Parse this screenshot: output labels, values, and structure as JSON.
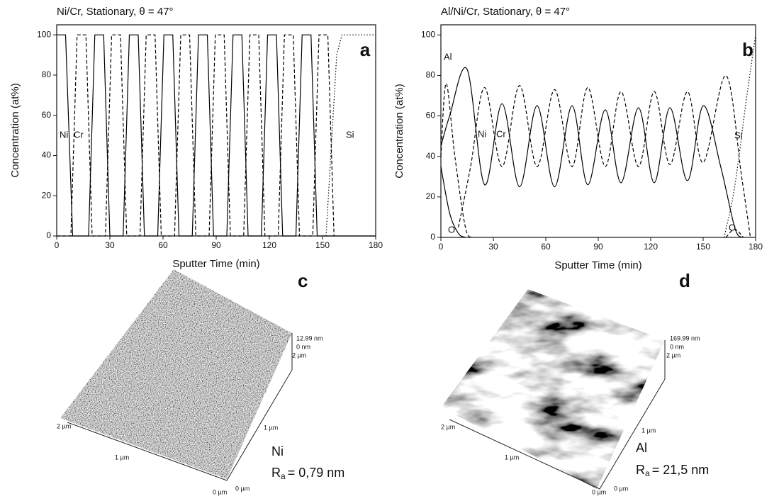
{
  "chart_data": [
    {
      "type": "line",
      "title": "Ni/Cr, Stationary, θ = 47°",
      "label": "a",
      "x_label": "Sputter Time (min)",
      "y_label": "Concentration (at%)",
      "xlim": [
        0,
        180
      ],
      "ylim": [
        0,
        105
      ],
      "xticks": [
        0,
        30,
        60,
        90,
        120,
        150,
        180
      ],
      "yticks": [
        0,
        20,
        40,
        60,
        80,
        100
      ],
      "smooth": false,
      "series": [
        {
          "name": "Ni",
          "color": "#000000",
          "dash": "solid",
          "x": [
            0,
            5,
            9,
            18,
            21.5,
            26.5,
            30,
            37.5,
            41,
            46,
            49.5,
            57,
            60.5,
            65.5,
            69,
            76.5,
            80,
            85,
            88.5,
            96,
            99.5,
            104.5,
            108,
            115.5,
            119,
            124,
            127.5,
            135,
            138.5,
            143.5,
            147,
            180
          ],
          "values": [
            100,
            100,
            0,
            0,
            100,
            100,
            0,
            0,
            100,
            100,
            0,
            0,
            100,
            100,
            0,
            0,
            100,
            100,
            0,
            0,
            100,
            100,
            0,
            0,
            100,
            100,
            0,
            0,
            100,
            100,
            0,
            0
          ]
        },
        {
          "name": "Cr",
          "color": "#000000",
          "dash": "dashed",
          "x": [
            0,
            8,
            11.5,
            16.5,
            20,
            27.5,
            31,
            36,
            39.5,
            47,
            50.5,
            55.5,
            59,
            66.5,
            70,
            75,
            78.5,
            86,
            89.5,
            94.5,
            98,
            105.5,
            109,
            114,
            117.5,
            125,
            128.5,
            133.5,
            137,
            144.5,
            148,
            153,
            156.5
          ],
          "values": [
            0,
            0,
            100,
            100,
            0,
            0,
            100,
            100,
            0,
            0,
            100,
            100,
            0,
            0,
            100,
            100,
            0,
            0,
            100,
            100,
            0,
            0,
            100,
            100,
            0,
            0,
            100,
            100,
            0,
            0,
            100,
            100,
            0
          ]
        },
        {
          "name": "Si",
          "color": "#000000",
          "dash": "dotted",
          "x": [
            152,
            158,
            161,
            180
          ],
          "values": [
            0,
            90,
            100,
            100
          ]
        }
      ]
    },
    {
      "type": "line",
      "title": "Al/Ni/Cr, Stationary, θ = 47°",
      "label": "b",
      "x_label": "Sputter Time (min)",
      "y_label": "Concentration (at%)",
      "xlim": [
        0,
        180
      ],
      "ylim": [
        0,
        105
      ],
      "xticks": [
        0,
        30,
        60,
        90,
        120,
        150,
        180
      ],
      "yticks": [
        0,
        20,
        40,
        60,
        80,
        100
      ],
      "smooth": true,
      "series": [
        {
          "name": "Al",
          "color": "#000000",
          "dash": "dashed",
          "x": [
            0,
            3,
            8,
            14,
            18
          ],
          "values": [
            40,
            76,
            40,
            5,
            0
          ]
        },
        {
          "name": "Ni",
          "color": "#000000",
          "dash": "solid",
          "x": [
            0,
            5,
            15,
            25,
            35,
            45,
            55,
            65,
            75,
            84,
            94,
            103,
            113,
            122,
            131,
            141,
            150,
            160,
            168,
            172
          ],
          "values": [
            45,
            60,
            83,
            26,
            66,
            25,
            65,
            25,
            65,
            26,
            63,
            27,
            64,
            27,
            64,
            28,
            65,
            35,
            5,
            0
          ]
        },
        {
          "name": "Cr",
          "color": "#000000",
          "dash": "dashed",
          "x": [
            10,
            17,
            25,
            35,
            45,
            55,
            65,
            75,
            84,
            94,
            103,
            113,
            122,
            131,
            141,
            150,
            163,
            172,
            177
          ],
          "values": [
            5,
            35,
            74,
            35,
            75,
            35,
            73,
            35,
            74,
            35,
            72,
            35,
            72,
            36,
            72,
            37,
            80,
            30,
            0
          ]
        },
        {
          "name": "Si",
          "color": "#000000",
          "dash": "dotted",
          "x": [
            162,
            168,
            175,
            180
          ],
          "values": [
            0,
            25,
            70,
            100
          ]
        },
        {
          "name": "O",
          "color": "#000000",
          "dash": "solid",
          "x": [
            0,
            5,
            10,
            14
          ],
          "values": [
            35,
            12,
            2,
            0
          ]
        },
        {
          "name": "O",
          "color": "#000000",
          "dash": "dashed",
          "x": [
            163,
            168,
            173
          ],
          "values": [
            0,
            4,
            0
          ]
        }
      ]
    }
  ],
  "panels": [
    {
      "label": "c",
      "z_max": "12.99 nm",
      "z_min": "0 nm",
      "y_end": "2 µm",
      "x_end": "2 µm",
      "x_mid": "1 µm",
      "x_zero": "0 µm",
      "y_zero": "0 µm",
      "y_mid": "1 µm",
      "material": "Ni",
      "roughness": {
        "symbol": "R",
        "subscript": "a",
        "value": "= 0,79 nm"
      }
    },
    {
      "label": "d",
      "z_max": "169.99 nm",
      "z_min": "0 nm",
      "y_end": "2 µm",
      "x_end": "2 µm",
      "x_mid": "1 µm",
      "x_zero": "0 µm",
      "y_zero": "0 µm",
      "y_mid": "1 µm",
      "material": "Al",
      "roughness": {
        "symbol": "R",
        "subscript": "a",
        "value": "= 21,5 nm"
      }
    }
  ]
}
